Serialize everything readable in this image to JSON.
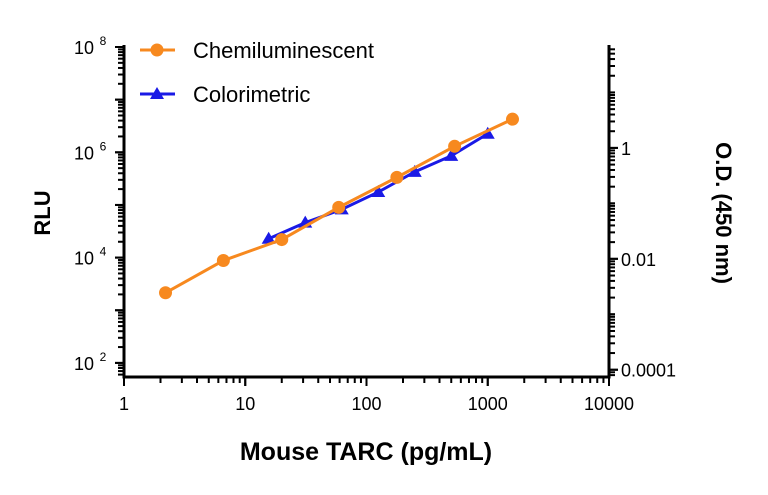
{
  "chart_data": {
    "type": "line",
    "xlabel": "Mouse TARC (pg/mL)",
    "ylabel": "RLU",
    "y2label": "O.D. (450 nm)",
    "xscale": "log",
    "yscale": "log",
    "y2scale": "log",
    "xlim": [
      1,
      10000
    ],
    "ylim": [
      54,
      100000000
    ],
    "y2lim": [
      7.4e-05,
      66
    ],
    "xticks": [
      {
        "v": 1,
        "label": "1"
      },
      {
        "v": 10,
        "label": "10"
      },
      {
        "v": 100,
        "label": "100"
      },
      {
        "v": 1000,
        "label": "1000"
      },
      {
        "v": 10000,
        "label": "10000"
      }
    ],
    "yticks": [
      {
        "v": 100,
        "base": "10",
        "exp": "2"
      },
      {
        "v": 10000,
        "base": "10",
        "exp": "4"
      },
      {
        "v": 1000000,
        "base": "10",
        "exp": "6"
      },
      {
        "v": 100000000,
        "base": "10",
        "exp": "8"
      }
    ],
    "y2ticks": [
      {
        "v": 0.0001,
        "label": "0.0001"
      },
      {
        "v": 0.01,
        "label": "0.01"
      },
      {
        "v": 1,
        "label": "1"
      }
    ],
    "grid": false,
    "legend": "top-left",
    "series": [
      {
        "name": "Chemiluminescent",
        "axis": "left",
        "color": "#f7891f",
        "marker": "circle",
        "x": [
          2.2,
          6.6,
          20,
          59,
          178,
          533,
          1600
        ],
        "y": [
          2150,
          8800,
          22000,
          90000,
          334000,
          1300000,
          4260000
        ]
      },
      {
        "name": "Colorimetric",
        "axis": "right",
        "color": "#1a1ae6",
        "marker": "triangle",
        "x": [
          15.6,
          31.25,
          62.5,
          125,
          250,
          500,
          1000
        ],
        "y": [
          0.023,
          0.045,
          0.078,
          0.16,
          0.37,
          0.72,
          1.8
        ]
      }
    ]
  }
}
